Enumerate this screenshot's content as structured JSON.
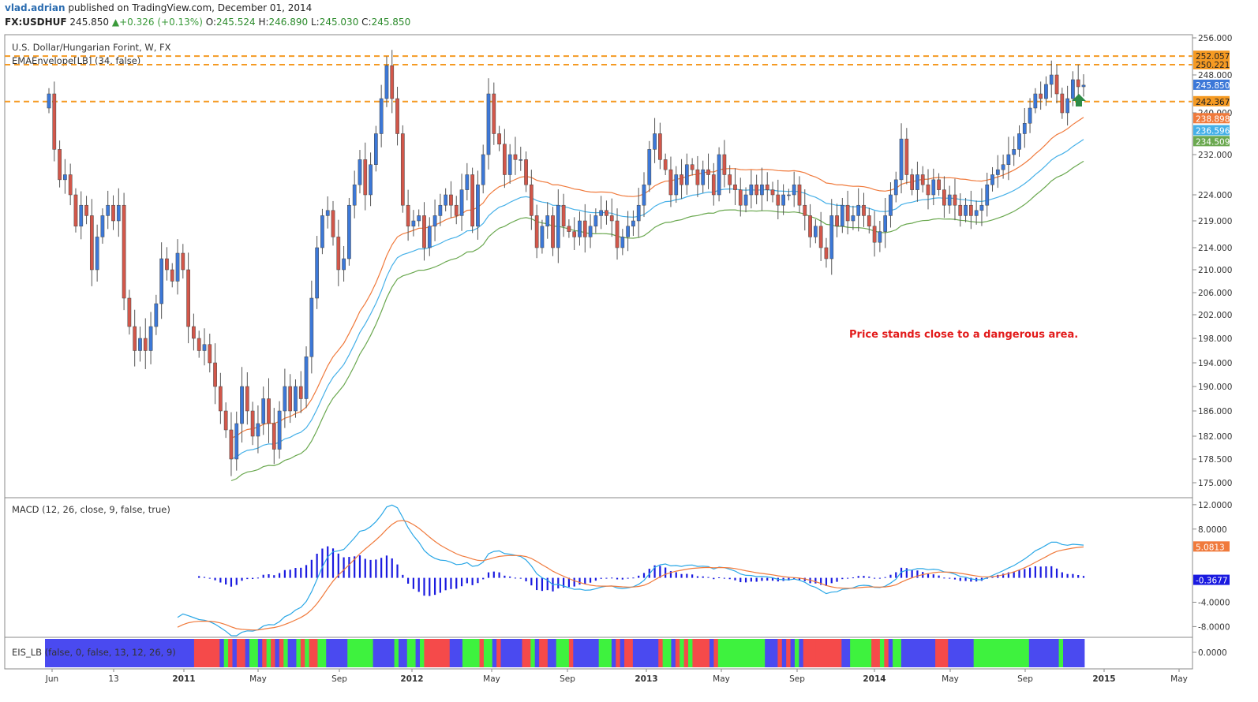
{
  "header": {
    "author": "vlad.adrian",
    "published": "published on TradingView.com, December 01, 2014",
    "symbol": "FX:USDHUF",
    "last": "245.850",
    "change": "+0.326 (+0.13%)",
    "open_label": "O:",
    "open": "245.524",
    "high_label": "H:",
    "high": "246.890",
    "low_label": "L:",
    "low": "245.030",
    "close_label": "C:",
    "close": "245.850"
  },
  "colors": {
    "bull": "#3c78d8",
    "bear": "#d2574a",
    "ema_fast": "#f07a3c",
    "ema_mid": "#45b0e8",
    "ema_slow": "#6aa84f",
    "level": "#f59a23",
    "macd": "#2aa7e6",
    "signal": "#f07a3c",
    "hist": "#1a1ae0",
    "eis_red": "#f54a4a",
    "eis_green": "#3ef23e",
    "eis_blue": "#4a4af0",
    "annotation": "#e21b1b"
  },
  "chart_data": [
    {
      "type": "candlestick",
      "title": "U.S. Dollar/Hungarian Forint, W, FX",
      "indicator": "EMAEnvelope[LB] (34, false)",
      "yticks": [
        "256.000",
        "248.000",
        "240.000",
        "232.000",
        "224.000",
        "219.000",
        "214.000",
        "210.000",
        "206.000",
        "202.000",
        "198.000",
        "194.000",
        "190.000",
        "186.000",
        "182.000",
        "178.500",
        "175.000"
      ],
      "ylim": [
        175.0,
        256.0
      ],
      "xticks": [
        "Jun",
        "13",
        "2011",
        "May",
        "Sep",
        "2012",
        "May",
        "Sep",
        "2013",
        "May",
        "Sep",
        "2014",
        "May",
        "Sep",
        "2015",
        "May"
      ],
      "xticks_bold": [
        "2011",
        "2012",
        "2013",
        "2014",
        "2015"
      ],
      "horizontal_levels": [
        252.057,
        250.221,
        242.367
      ],
      "price_tags": [
        {
          "label": "252.057",
          "kind": "level"
        },
        {
          "label": "250.221",
          "kind": "level"
        },
        {
          "label": "248.000",
          "kind": "tick"
        },
        {
          "label": "245.850",
          "kind": "last"
        },
        {
          "label": "242.367",
          "kind": "level"
        },
        {
          "label": "238.898",
          "kind": "ema_fast"
        },
        {
          "label": "236.596",
          "kind": "ema_mid"
        },
        {
          "label": "234.509",
          "kind": "ema_slow"
        }
      ],
      "annotation": "Price stands close to a dangerous area.",
      "close": [
        244.0,
        233.0,
        227.0,
        228.0,
        224.0,
        218.0,
        222.0,
        220.0,
        210.0,
        216.0,
        220.0,
        222.0,
        219.0,
        222.0,
        205.0,
        200.0,
        196.0,
        198.0,
        196.0,
        200.0,
        204.0,
        212.0,
        210.0,
        208.0,
        213.0,
        210.0,
        200.0,
        198.0,
        196.0,
        197.0,
        194.0,
        190.0,
        186.0,
        183.0,
        178.5,
        184.0,
        190.0,
        186.0,
        182.0,
        184.0,
        188.0,
        184.0,
        180.0,
        186.0,
        190.0,
        186.0,
        190.0,
        188.0,
        195.0,
        205.0,
        214.0,
        220.0,
        221.0,
        216.0,
        210.0,
        212.0,
        222.0,
        226.0,
        231.0,
        224.0,
        230.0,
        236.0,
        243.0,
        250.0,
        243.0,
        236.0,
        222.0,
        218.0,
        219.0,
        220.0,
        214.0,
        218.0,
        220.0,
        222.0,
        224.0,
        222.0,
        220.0,
        225.0,
        228.0,
        218.0,
        226.0,
        232.0,
        244.0,
        236.0,
        234.0,
        228.0,
        232.0,
        231.0,
        231.0,
        226.0,
        220.0,
        214.0,
        218.0,
        220.0,
        214.0,
        222.0,
        218.0,
        217.0,
        216.0,
        219.0,
        216.0,
        218.0,
        220.0,
        221.0,
        220.0,
        219.0,
        214.0,
        216.0,
        218.0,
        219.0,
        222.0,
        226.0,
        233.0,
        236.0,
        231.0,
        229.0,
        224.0,
        228.0,
        226.0,
        230.0,
        229.0,
        226.0,
        229.0,
        228.0,
        224.0,
        232.0,
        228.0,
        226.0,
        225.0,
        222.0,
        224.0,
        226.0,
        224.0,
        226.0,
        225.0,
        224.0,
        222.0,
        224.0,
        224.0,
        226.0,
        222.0,
        220.0,
        216.0,
        218.0,
        214.0,
        212.0,
        220.0,
        218.0,
        222.0,
        219.0,
        220.0,
        222.0,
        220.0,
        218.0,
        215.0,
        217.0,
        220.0,
        224.0,
        227.0,
        235.0,
        228.0,
        225.0,
        228.0,
        226.0,
        224.0,
        227.0,
        225.0,
        222.0,
        224.0,
        222.0,
        220.0,
        222.0,
        220.0,
        221.0,
        222.0,
        226.0,
        228.0,
        229.0,
        230.0,
        232.0,
        233.0,
        236.0,
        238.0,
        241.0,
        244.0,
        243.0,
        246.0,
        248.0,
        244.0,
        240.0,
        243.0,
        247.0,
        245.5,
        245.85
      ]
    },
    {
      "type": "line",
      "title": "MACD (12, 26, close, 9, false, true)",
      "yticks": [
        "12.0000",
        "8.0000",
        "-4.0000",
        "-8.0000"
      ],
      "ylim": [
        -9.5,
        12.5
      ],
      "price_tags": [
        {
          "label": "5.0813",
          "kind": "signal"
        },
        {
          "label": "-0.3677",
          "kind": "hist"
        }
      ]
    },
    {
      "type": "heatmap",
      "title": "EIS_LB (false, 0, false, 13, 12, 26, 9)",
      "yticks": [
        "0.0000"
      ],
      "states": "bbbbbbbbbbbbbbbbbbbbbbbbbbbbbbbbbbbrrrrrrbgrbrrbggbrgrbrgbbgrgrrggbbbbbggggggbbbbbgbbggbgrrrrrrbbbggggrggbrbbbbbrrgbrrbbgggrbbbbbbgggbrbrrbbbbbbrggbrgrgrrrrbrgggggggggggbbbrbrbgbrrrrrrrrrbbgggggrrgrbggbbbbbbbbrrrbbbbbbgggggggggggggbbbbbbbgbbbbb"
    }
  ]
}
